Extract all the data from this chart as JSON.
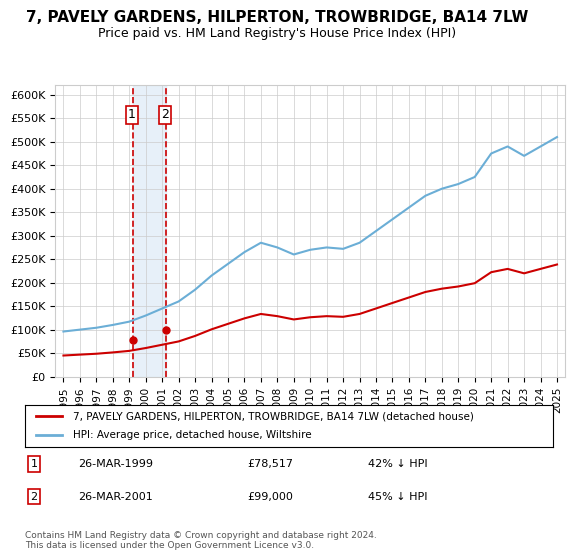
{
  "title": "7, PAVELY GARDENS, HILPERTON, TROWBRIDGE, BA14 7LW",
  "subtitle": "Price paid vs. HM Land Registry's House Price Index (HPI)",
  "legend_line1": "7, PAVELY GARDENS, HILPERTON, TROWBRIDGE, BA14 7LW (detached house)",
  "legend_line2": "HPI: Average price, detached house, Wiltshire",
  "footnote": "Contains HM Land Registry data © Crown copyright and database right 2024.\nThis data is licensed under the Open Government Licence v3.0.",
  "sale1_label": "1",
  "sale1_date": "26-MAR-1999",
  "sale1_price": "£78,517",
  "sale1_hpi": "42% ↓ HPI",
  "sale1_year": 1999.23,
  "sale1_value": 78517,
  "sale2_label": "2",
  "sale2_date": "26-MAR-2001",
  "sale2_price": "£99,000",
  "sale2_hpi": "45% ↓ HPI",
  "sale2_year": 2001.23,
  "sale2_value": 99000,
  "hpi_color": "#6baed6",
  "sale_color": "#cc0000",
  "vline_color": "#cc0000",
  "shade_color": "#deebf7",
  "background_color": "#ffffff",
  "ylim": [
    0,
    600000
  ],
  "xlim_start": 1995,
  "xlim_end": 2025.5,
  "hpi_years": [
    1995,
    1996,
    1997,
    1998,
    1999,
    2000,
    2001,
    2002,
    2003,
    2004,
    2005,
    2006,
    2007,
    2008,
    2009,
    2010,
    2011,
    2012,
    2013,
    2014,
    2015,
    2016,
    2017,
    2018,
    2019,
    2020,
    2021,
    2022,
    2023,
    2024,
    2025
  ],
  "hpi_values": [
    96000,
    100000,
    104000,
    110000,
    117000,
    130000,
    145000,
    160000,
    185000,
    215000,
    240000,
    265000,
    285000,
    275000,
    260000,
    270000,
    275000,
    272000,
    285000,
    310000,
    335000,
    360000,
    385000,
    400000,
    410000,
    425000,
    475000,
    490000,
    470000,
    490000,
    510000
  ],
  "sale_years": [
    1999.23,
    2001.23
  ],
  "sale_values": [
    78517,
    99000
  ],
  "sold_hpi_years": [
    1995,
    1996,
    1997,
    1998,
    1999,
    2000,
    2001,
    2002,
    2003,
    2004,
    2005,
    2006,
    2007,
    2008,
    2009,
    2010,
    2011,
    2012,
    2013,
    2014,
    2015,
    2016,
    2017,
    2018,
    2019,
    2020,
    2021,
    2022,
    2023,
    2024,
    2025
  ],
  "sold_hpi_values": [
    44880,
    46800,
    48672,
    51480,
    54756,
    60840,
    67830,
    74880,
    86580,
    100620,
    112320,
    123970,
    133380,
    128700,
    121680,
    126360,
    128700,
    127296,
    133380,
    145070,
    156810,
    168480,
    180180,
    187200,
    191880,
    198900,
    222300,
    229320,
    219870,
    229320,
    238680
  ]
}
